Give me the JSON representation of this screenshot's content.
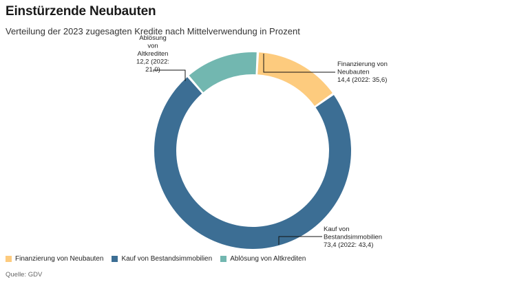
{
  "header": {
    "title": "Einstürzende Neubauten",
    "subtitle": "Verteilung der 2023 zugesagten Kredite nach Mittelverwendung in Prozent"
  },
  "chart_data": {
    "type": "pie",
    "variant": "donut",
    "slices": [
      {
        "category": "Finanzierung von Neubauten",
        "value": 14.4,
        "value_2022": 35.6,
        "color": "#FDCB7E",
        "label_lines": [
          "Finanzierung von",
          "Neubauten",
          "14,4 (2022: 35,6)"
        ]
      },
      {
        "category": "Kauf von Bestandsimmobilien",
        "value": 73.4,
        "value_2022": 43.4,
        "color": "#3C6E94",
        "label_lines": [
          "Kauf von",
          "Bestandsimmobilien",
          "73,4 (2022: 43,4)"
        ]
      },
      {
        "category": "Ablösung von Altkrediten",
        "value": 12.2,
        "value_2022": 21.0,
        "color": "#72B7B0",
        "label_lines": [
          "Ablösung",
          "von",
          "Altkrediten",
          "12,2 (2022:",
          "21,0)"
        ]
      }
    ],
    "legend_position": "bottom-left"
  },
  "legend": {
    "items": [
      {
        "label": "Finanzierung von Neubauten",
        "color": "#FDCB7E"
      },
      {
        "label": "Kauf von Bestandsimmobilien",
        "color": "#3C6E94"
      },
      {
        "label": "Ablösung von Altkrediten",
        "color": "#72B7B0"
      }
    ]
  },
  "footer": {
    "source": "Quelle: GDV"
  }
}
